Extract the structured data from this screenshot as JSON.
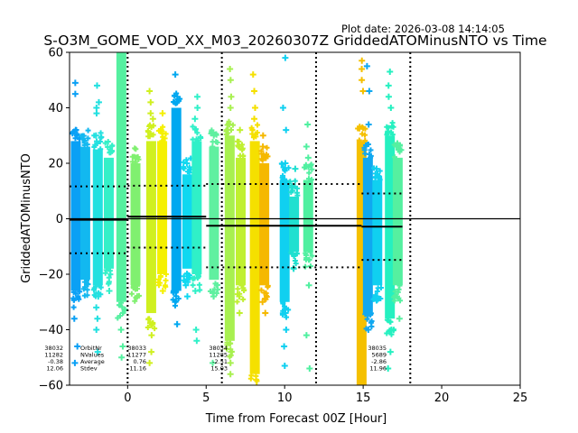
{
  "chart_data": {
    "type": "scatter",
    "title": "S-O3M_GOME_VOD_XX_M03_20260307Z GriddedATOMinusNTO vs Time",
    "subtitle": "Plot date: 2026-03-08 14:14:05",
    "xlabel": "Time from Forecast 00Z [Hour]",
    "ylabel": "GriddedATOMinusNTO",
    "xlim": [
      -3.7,
      25
    ],
    "ylim": [
      -60,
      60
    ],
    "xticks": [
      0,
      5,
      10,
      15,
      20,
      25
    ],
    "yticks": [
      -60,
      -40,
      -20,
      0,
      20,
      40,
      60
    ],
    "marker": "+",
    "grid": false,
    "reference_line_y": 0,
    "forecast_boundaries": [
      0,
      6,
      12,
      18
    ],
    "stat_labels": [
      "OrbitNr",
      "NValues",
      "Average",
      "Stdev"
    ],
    "orbits": [
      {
        "orbit": "38032",
        "nvalues": "11282",
        "average": "-0.38",
        "stdev": "12.06",
        "x_start": -3.7,
        "x_end": 0.0
      },
      {
        "orbit": "38033",
        "nvalues": "11277",
        "average": "0.76",
        "stdev": "11.16",
        "x_start": 0.0,
        "x_end": 5.0
      },
      {
        "orbit": "38034",
        "nvalues": "11285",
        "average": "-2.51",
        "stdev": "15.03",
        "x_start": 5.0,
        "x_end": 14.9
      },
      {
        "orbit": "38035",
        "nvalues": "5689",
        "average": "-2.86",
        "stdev": "11.96",
        "x_start": 14.9,
        "x_end": 17.5
      }
    ],
    "scan_columns": [
      {
        "x": -3.3,
        "color": "#0aa0f5",
        "core": [
          -26,
          28
        ],
        "outliers": [
          45,
          49,
          -36,
          -46,
          -52,
          30,
          32
        ]
      },
      {
        "x": -2.7,
        "color": "#12b8f0",
        "core": [
          -22,
          26
        ],
        "outliers": []
      },
      {
        "x": -1.9,
        "color": "#22e0e0",
        "core": [
          -24,
          25
        ],
        "outliers": [
          48,
          42,
          40,
          38,
          30,
          -28,
          -32,
          -36,
          -40,
          -48
        ]
      },
      {
        "x": -1.2,
        "color": "#35f0c8",
        "core": [
          -18,
          22
        ],
        "outliers": [
          24,
          -26
        ]
      },
      {
        "x": -0.4,
        "color": "#55f0a0",
        "core": [
          -30,
          60
        ],
        "outliers": [
          -40,
          -46,
          -50
        ]
      },
      {
        "x": 0.5,
        "color": "#80f070",
        "core": [
          -24,
          20
        ],
        "outliers": [
          22,
          -28
        ]
      },
      {
        "x": 1.5,
        "color": "#d0f020",
        "core": [
          -34,
          28
        ],
        "outliers": [
          46,
          42,
          38,
          36,
          -38,
          -42,
          -48,
          -52
        ]
      },
      {
        "x": 2.2,
        "color": "#f5f000",
        "core": [
          -20,
          28
        ],
        "outliers": [
          38,
          32,
          -26
        ]
      },
      {
        "x": 3.1,
        "color": "#00a8f0",
        "core": [
          -26,
          40
        ],
        "outliers": [
          52,
          44,
          42,
          -30,
          -38
        ]
      },
      {
        "x": 3.8,
        "color": "#10d8f0",
        "core": [
          -18,
          16
        ],
        "outliers": [
          20,
          -24,
          -28
        ]
      },
      {
        "x": 4.4,
        "color": "#30f0c8",
        "core": [
          -20,
          28
        ],
        "outliers": [
          44,
          40,
          36,
          -26,
          -40,
          -44
        ]
      },
      {
        "x": 5.5,
        "color": "#60f0a0",
        "core": [
          -22,
          26
        ],
        "outliers": [
          30,
          -28,
          -52
        ]
      },
      {
        "x": 6.5,
        "color": "#a8f050",
        "core": [
          -44,
          30
        ],
        "outliers": [
          54,
          50,
          44,
          40,
          34,
          -48,
          -52,
          -56
        ]
      },
      {
        "x": 7.2,
        "color": "#c0f030",
        "core": [
          -24,
          22
        ],
        "outliers": [
          32,
          26,
          -28,
          -34
        ]
      },
      {
        "x": 8.1,
        "color": "#f5e000",
        "core": [
          -56,
          28
        ],
        "outliers": [
          52,
          46,
          40,
          36,
          -58
        ]
      },
      {
        "x": 8.7,
        "color": "#f5b800",
        "core": [
          -24,
          20
        ],
        "outliers": [
          30,
          26,
          -30,
          -34
        ]
      },
      {
        "x": 10.0,
        "color": "#10d0f0",
        "core": [
          -30,
          14
        ],
        "outliers": [
          58,
          40,
          32,
          20,
          -34,
          -40,
          -46,
          -53
        ]
      },
      {
        "x": 10.6,
        "color": "#20e0d0",
        "core": [
          -12,
          8
        ],
        "outliers": [
          18,
          -18
        ]
      },
      {
        "x": 11.5,
        "color": "#50f0a0",
        "core": [
          -12,
          14
        ],
        "outliers": [
          22,
          26,
          34,
          -24,
          -42,
          -54
        ]
      },
      {
        "x": 14.9,
        "color": "#f5c000",
        "core": [
          -60,
          28
        ],
        "outliers": [
          57,
          54,
          50,
          46
        ]
      },
      {
        "x": 15.3,
        "color": "#10a8f0",
        "core": [
          -34,
          22
        ],
        "outliers": [
          55,
          46,
          34,
          -40
        ]
      },
      {
        "x": 15.9,
        "color": "#10d0f0",
        "core": [
          -24,
          14
        ],
        "outliers": [
          18,
          -28
        ]
      },
      {
        "x": 16.7,
        "color": "#25f0c0",
        "core": [
          -36,
          30
        ],
        "outliers": [
          53,
          48,
          44,
          40,
          -40,
          -48,
          -54
        ]
      },
      {
        "x": 17.2,
        "color": "#55f0a0",
        "core": [
          -24,
          22
        ],
        "outliers": [
          26,
          -28,
          -36
        ]
      }
    ]
  }
}
